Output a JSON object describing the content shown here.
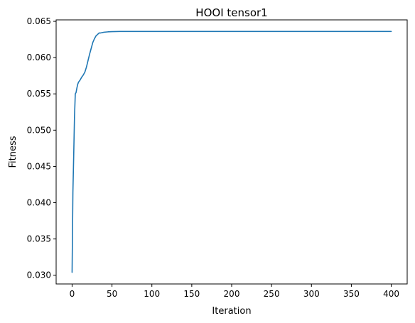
{
  "chart_data": {
    "type": "line",
    "title": "HOOI tensor1",
    "xlabel": "Iteration",
    "ylabel": "Fitness",
    "xlim": [
      -20,
      420
    ],
    "ylim": [
      0.0288,
      0.0652
    ],
    "xticks": [
      0,
      50,
      100,
      150,
      200,
      250,
      300,
      350,
      400
    ],
    "xtick_labels": [
      "0",
      "50",
      "100",
      "150",
      "200",
      "250",
      "300",
      "350",
      "400"
    ],
    "yticks": [
      0.03,
      0.035,
      0.04,
      0.045,
      0.05,
      0.055,
      0.06,
      0.065
    ],
    "ytick_labels": [
      "0.030",
      "0.035",
      "0.040",
      "0.045",
      "0.050",
      "0.055",
      "0.060",
      "0.065"
    ],
    "grid": false,
    "colors": {
      "line": "#1f77b4"
    },
    "series": [
      {
        "x": [
          0,
          1,
          2,
          3,
          4,
          5,
          6,
          7,
          8,
          10,
          12,
          14,
          16,
          18,
          20,
          22,
          24,
          26,
          28,
          30,
          32,
          34,
          36,
          40,
          45,
          50,
          60,
          70,
          80,
          100,
          150,
          200,
          250,
          300,
          350,
          400
        ],
        "y": [
          0.0304,
          0.0414,
          0.0464,
          0.0518,
          0.055,
          0.0552,
          0.0558,
          0.0563,
          0.0566,
          0.0569,
          0.0573,
          0.0576,
          0.058,
          0.0587,
          0.0596,
          0.0605,
          0.0613,
          0.0621,
          0.0626,
          0.063,
          0.0632,
          0.0634,
          0.0634,
          0.0635,
          0.06355,
          0.06358,
          0.0636,
          0.0636,
          0.0636,
          0.0636,
          0.0636,
          0.0636,
          0.0636,
          0.0636,
          0.0636,
          0.0636
        ]
      }
    ]
  }
}
